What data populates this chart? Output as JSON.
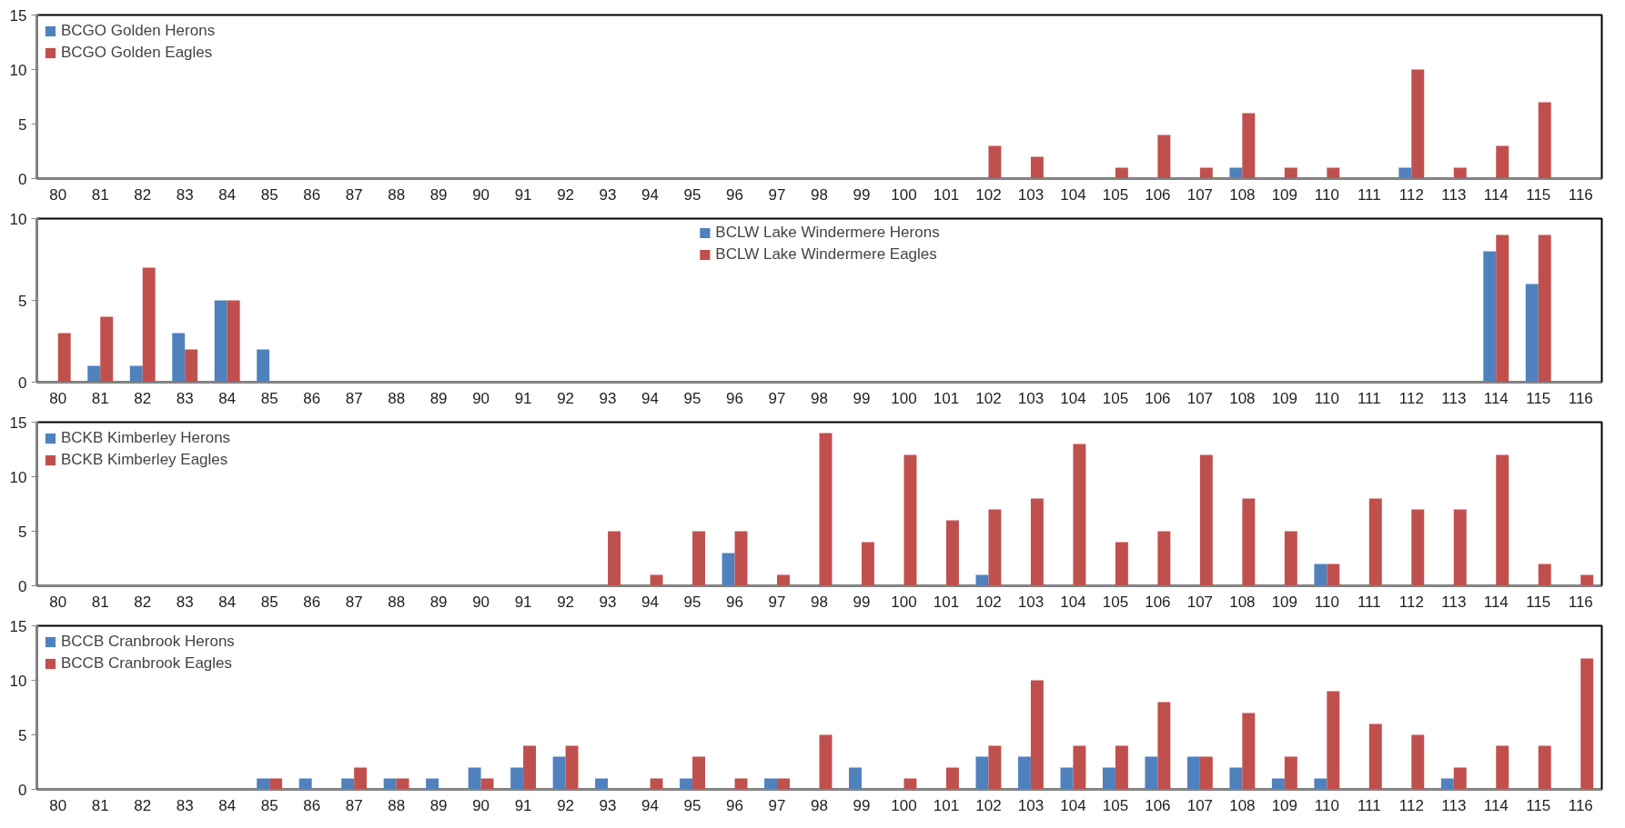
{
  "chart_data": [
    {
      "type": "bar",
      "categories": [
        "80",
        "81",
        "82",
        "83",
        "84",
        "85",
        "86",
        "87",
        "88",
        "89",
        "90",
        "91",
        "92",
        "93",
        "94",
        "95",
        "96",
        "97",
        "98",
        "99",
        "100",
        "101",
        "102",
        "103",
        "104",
        "105",
        "106",
        "107",
        "108",
        "109",
        "110",
        "111",
        "112",
        "113",
        "114",
        "115",
        "116"
      ],
      "ylim": [
        0,
        15
      ],
      "yticks": [
        0,
        5,
        10,
        15
      ],
      "grid": false,
      "legend": "top left",
      "series": [
        {
          "name": "BCGO Golden Herons",
          "color": "#4f81bd",
          "values": [
            0,
            0,
            0,
            0,
            0,
            0,
            0,
            0,
            0,
            0,
            0,
            0,
            0,
            0,
            0,
            0,
            0,
            0,
            0,
            0,
            0,
            0,
            0,
            0,
            0,
            0,
            0,
            0,
            1,
            0,
            0,
            0,
            1,
            0,
            0,
            0,
            0
          ]
        },
        {
          "name": "BCGO Golden Eagles",
          "color": "#c0504d",
          "values": [
            0,
            0,
            0,
            0,
            0,
            0,
            0,
            0,
            0,
            0,
            0,
            0,
            0,
            0,
            0,
            0,
            0,
            0,
            0,
            0,
            0,
            0,
            3,
            2,
            0,
            1,
            4,
            1,
            6,
            1,
            1,
            0,
            10,
            1,
            3,
            7,
            0
          ]
        }
      ]
    },
    {
      "type": "bar",
      "categories": [
        "80",
        "81",
        "82",
        "83",
        "84",
        "85",
        "86",
        "87",
        "88",
        "89",
        "90",
        "91",
        "92",
        "93",
        "94",
        "95",
        "96",
        "97",
        "98",
        "99",
        "100",
        "101",
        "102",
        "103",
        "104",
        "105",
        "106",
        "107",
        "108",
        "109",
        "110",
        "111",
        "112",
        "113",
        "114",
        "115",
        "116"
      ],
      "ylim": [
        0,
        10
      ],
      "yticks": [
        0,
        5,
        10
      ],
      "grid": false,
      "legend": "top",
      "series": [
        {
          "name": "BCLW Lake Windermere Herons",
          "color": "#4f81bd",
          "values": [
            0,
            1,
            1,
            3,
            5,
            2,
            0,
            0,
            0,
            0,
            0,
            0,
            0,
            0,
            0,
            0,
            0,
            0,
            0,
            0,
            0,
            0,
            0,
            0,
            0,
            0,
            0,
            0,
            0,
            0,
            0,
            0,
            0,
            0,
            8,
            6,
            0
          ]
        },
        {
          "name": "BCLW Lake Windermere Eagles",
          "color": "#c0504d",
          "values": [
            3,
            4,
            7,
            2,
            5,
            0,
            0,
            0,
            0,
            0,
            0,
            0,
            0,
            0,
            0,
            0,
            0,
            0,
            0,
            0,
            0,
            0,
            0,
            0,
            0,
            0,
            0,
            0,
            0,
            0,
            0,
            0,
            0,
            0,
            9,
            9,
            0
          ]
        }
      ]
    },
    {
      "type": "bar",
      "categories": [
        "80",
        "81",
        "82",
        "83",
        "84",
        "85",
        "86",
        "87",
        "88",
        "89",
        "90",
        "91",
        "92",
        "93",
        "94",
        "95",
        "96",
        "97",
        "98",
        "99",
        "100",
        "101",
        "102",
        "103",
        "104",
        "105",
        "106",
        "107",
        "108",
        "109",
        "110",
        "111",
        "112",
        "113",
        "114",
        "115",
        "116"
      ],
      "ylim": [
        0,
        15
      ],
      "yticks": [
        0,
        5,
        10,
        15
      ],
      "grid": false,
      "legend": "top left",
      "series": [
        {
          "name": "BCKB Kimberley Herons",
          "color": "#4f81bd",
          "values": [
            0,
            0,
            0,
            0,
            0,
            0,
            0,
            0,
            0,
            0,
            0,
            0,
            0,
            0,
            0,
            0,
            3,
            0,
            0,
            0,
            0,
            0,
            1,
            0,
            0,
            0,
            0,
            0,
            0,
            0,
            2,
            0,
            0,
            0,
            0,
            0,
            0
          ]
        },
        {
          "name": "BCKB Kimberley Eagles",
          "color": "#c0504d",
          "values": [
            0,
            0,
            0,
            0,
            0,
            0,
            0,
            0,
            0,
            0,
            0,
            0,
            0,
            5,
            1,
            5,
            5,
            1,
            14,
            4,
            12,
            6,
            7,
            8,
            13,
            4,
            5,
            12,
            8,
            5,
            2,
            8,
            7,
            7,
            12,
            2,
            1
          ]
        }
      ]
    },
    {
      "type": "bar",
      "categories": [
        "80",
        "81",
        "82",
        "83",
        "84",
        "85",
        "86",
        "87",
        "88",
        "89",
        "90",
        "91",
        "92",
        "93",
        "94",
        "95",
        "96",
        "97",
        "98",
        "99",
        "100",
        "101",
        "102",
        "103",
        "104",
        "105",
        "106",
        "107",
        "108",
        "109",
        "110",
        "111",
        "112",
        "113",
        "114",
        "115",
        "116"
      ],
      "ylim": [
        0,
        15
      ],
      "yticks": [
        0,
        5,
        10,
        15
      ],
      "grid": false,
      "legend": "top left",
      "series": [
        {
          "name": "BCCB Cranbrook Herons",
          "color": "#4f81bd",
          "values": [
            0,
            0,
            0,
            0,
            0,
            1,
            1,
            1,
            1,
            1,
            2,
            2,
            3,
            1,
            0,
            1,
            0,
            1,
            0,
            2,
            0,
            0,
            3,
            3,
            2,
            2,
            3,
            3,
            2,
            1,
            1,
            0,
            0,
            1,
            0,
            0,
            0
          ]
        },
        {
          "name": "BCCB Cranbrook Eagles",
          "color": "#c0504d",
          "values": [
            0,
            0,
            0,
            0,
            0,
            1,
            0,
            2,
            1,
            0,
            1,
            4,
            4,
            0,
            1,
            3,
            1,
            1,
            5,
            0,
            1,
            2,
            4,
            10,
            4,
            4,
            8,
            3,
            7,
            3,
            9,
            6,
            5,
            2,
            4,
            4,
            12
          ]
        }
      ]
    }
  ]
}
